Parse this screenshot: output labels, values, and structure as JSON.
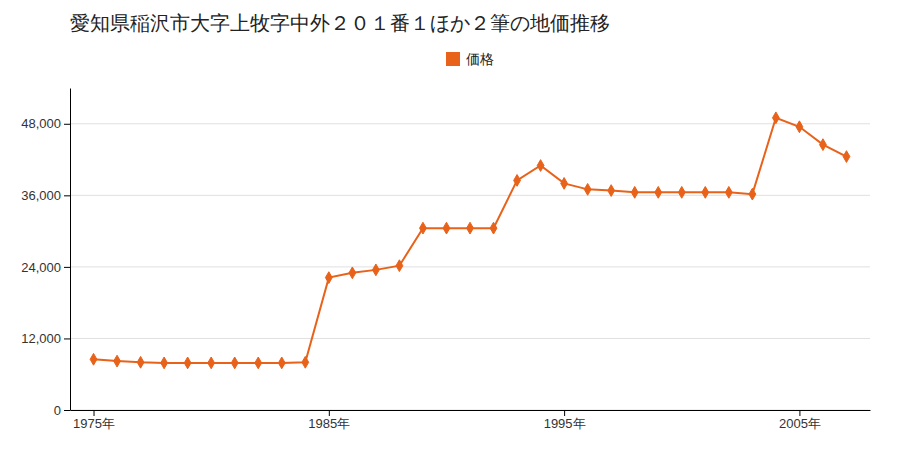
{
  "chart_data": {
    "type": "line",
    "title": "愛知県稲沢市大字上牧字中外２０１番１ほか２筆の地価推移",
    "x": [
      1975,
      1976,
      1977,
      1978,
      1979,
      1980,
      1981,
      1982,
      1983,
      1984,
      1985,
      1986,
      1987,
      1988,
      1989,
      1990,
      1991,
      1992,
      1993,
      1994,
      1995,
      1996,
      1997,
      1998,
      1999,
      2000,
      2001,
      2002,
      2003,
      2004,
      2005,
      2006,
      2007
    ],
    "series": [
      {
        "name": "価格",
        "color": "#e8621a",
        "marker": "diamond",
        "values": [
          8500,
          8200,
          8000,
          7900,
          7900,
          7900,
          7900,
          7900,
          7900,
          8000,
          22200,
          23000,
          23500,
          24200,
          30500,
          30500,
          30500,
          30500,
          38500,
          41000,
          38000,
          37000,
          36800,
          36500,
          36500,
          36500,
          36500,
          36500,
          36200,
          49000,
          47500,
          44500,
          42500
        ]
      }
    ],
    "xlim": [
      1974,
      2008
    ],
    "xticks": [
      {
        "value": 1975,
        "label": "1975年"
      },
      {
        "value": 1985,
        "label": "1985年"
      },
      {
        "value": 1995,
        "label": "1995年"
      },
      {
        "value": 2005,
        "label": "2005年"
      }
    ],
    "ylim": [
      0,
      54000
    ],
    "yticks": [
      0,
      {
        "value": 12000,
        "label": "12,000"
      },
      {
        "value": 24000,
        "label": "24,000"
      },
      {
        "value": 36000,
        "label": "36,000"
      },
      {
        "value": 48000,
        "label": "48,000"
      }
    ],
    "grid": true,
    "legend": "top"
  }
}
